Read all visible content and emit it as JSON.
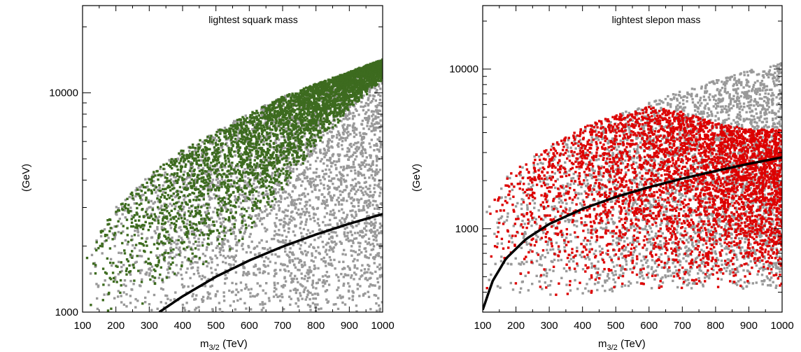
{
  "chart_data": [
    {
      "type": "scatter",
      "title": "lightest squark mass",
      "xlabel_main": "m",
      "xlabel_sub": "3/2",
      "xlabel_unit": " (TeV)",
      "ylabel": "(GeV)",
      "xlim": [
        100,
        1000
      ],
      "ylim": [
        1000,
        25000
      ],
      "yscale": "log",
      "x_ticks": [
        "100",
        "200",
        "300",
        "400",
        "500",
        "600",
        "700",
        "800",
        "900",
        "1000"
      ],
      "y_ticks": [
        "1000",
        "10000"
      ],
      "colors": {
        "highlight": "#3d6b1f",
        "background": "#999999",
        "curve": "#000000"
      },
      "series": [
        {
          "role": "background",
          "color": "#999999",
          "lower": [
            [
              100,
              1000
            ],
            [
              200,
              1000
            ],
            [
              400,
              1000
            ],
            [
              600,
              1000
            ],
            [
              800,
              1000
            ],
            [
              1000,
              1000
            ]
          ],
          "upper": [
            [
              100,
              1700
            ],
            [
              150,
              2300
            ],
            [
              200,
              3000
            ],
            [
              300,
              4200
            ],
            [
              400,
              5500
            ],
            [
              500,
              6700
            ],
            [
              600,
              8100
            ],
            [
              700,
              9600
            ],
            [
              800,
              11000
            ],
            [
              900,
              12500
            ],
            [
              1000,
              14200
            ]
          ]
        },
        {
          "role": "highlight",
          "color": "#3d6b1f",
          "lower": [
            [
              100,
              1000
            ],
            [
              200,
              1000
            ],
            [
              300,
              1100
            ],
            [
              400,
              1400
            ],
            [
              500,
              1700
            ],
            [
              600,
              2200
            ],
            [
              700,
              3500
            ],
            [
              800,
              5600
            ],
            [
              900,
              8200
            ],
            [
              1000,
              11500
            ]
          ],
          "upper": [
            [
              100,
              1700
            ],
            [
              150,
              2300
            ],
            [
              200,
              3000
            ],
            [
              300,
              4200
            ],
            [
              400,
              5500
            ],
            [
              500,
              6700
            ],
            [
              600,
              8100
            ],
            [
              700,
              9600
            ],
            [
              800,
              11000
            ],
            [
              900,
              12500
            ],
            [
              1000,
              14200
            ]
          ]
        },
        {
          "role": "curve",
          "color": "#000000",
          "points": [
            [
              330,
              1000
            ],
            [
              400,
              1180
            ],
            [
              500,
              1450
            ],
            [
              600,
              1720
            ],
            [
              700,
              1990
            ],
            [
              800,
              2260
            ],
            [
              900,
              2530
            ],
            [
              1000,
              2800
            ]
          ]
        }
      ]
    },
    {
      "type": "scatter",
      "title": "lightest slepon mass",
      "xlabel_main": "m",
      "xlabel_sub": "3/2",
      "xlabel_unit": " (TeV)",
      "ylabel": "(GeV)",
      "xlim": [
        100,
        1000
      ],
      "ylim": [
        300,
        25000
      ],
      "yscale": "log",
      "x_ticks": [
        "100",
        "200",
        "300",
        "400",
        "500",
        "600",
        "700",
        "800",
        "900",
        "1000"
      ],
      "y_ticks": [
        "1000",
        "10000"
      ],
      "colors": {
        "highlight": "#dd0000",
        "background": "#999999",
        "curve": "#000000"
      },
      "series": [
        {
          "role": "background",
          "color": "#999999",
          "lower": [
            [
              100,
              380
            ],
            [
              300,
              380
            ],
            [
              500,
              400
            ],
            [
              700,
              420
            ],
            [
              900,
              420
            ],
            [
              1000,
              420
            ]
          ],
          "upper": [
            [
              100,
              1400
            ],
            [
              150,
              1900
            ],
            [
              200,
              2400
            ],
            [
              300,
              3300
            ],
            [
              400,
              4300
            ],
            [
              500,
              5200
            ],
            [
              600,
              6200
            ],
            [
              700,
              7300
            ],
            [
              800,
              8500
            ],
            [
              900,
              9800
            ],
            [
              1000,
              11000
            ]
          ]
        },
        {
          "role": "highlight",
          "color": "#dd0000",
          "lower": [
            [
              100,
              360
            ],
            [
              300,
              370
            ],
            [
              500,
              380
            ],
            [
              700,
              400
            ],
            [
              900,
              420
            ],
            [
              1000,
              420
            ]
          ],
          "upper": [
            [
              100,
              1400
            ],
            [
              150,
              1900
            ],
            [
              200,
              2400
            ],
            [
              300,
              3300
            ],
            [
              400,
              4300
            ],
            [
              500,
              5200
            ],
            [
              600,
              5800
            ],
            [
              700,
              5400
            ],
            [
              800,
              4600
            ],
            [
              900,
              4200
            ],
            [
              1000,
              4200
            ]
          ]
        },
        {
          "role": "curve",
          "color": "#000000",
          "points": [
            [
              100,
              310
            ],
            [
              130,
              470
            ],
            [
              170,
              650
            ],
            [
              230,
              860
            ],
            [
              300,
              1070
            ],
            [
              400,
              1330
            ],
            [
              500,
              1580
            ],
            [
              600,
              1820
            ],
            [
              700,
              2060
            ],
            [
              800,
              2300
            ],
            [
              900,
              2550
            ],
            [
              1000,
              2800
            ]
          ]
        }
      ]
    }
  ]
}
